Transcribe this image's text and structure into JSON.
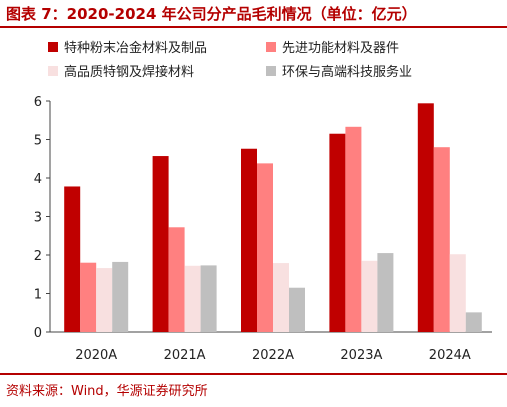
{
  "title": "图表 7：2020-2024 年公司分产品毛利情况（单位：亿元）",
  "source": "资料来源：Wind，华源证券研究所",
  "chart_data": {
    "type": "bar",
    "categories": [
      "2020A",
      "2021A",
      "2022A",
      "2023A",
      "2024A"
    ],
    "ylim": [
      0,
      6
    ],
    "yticks": [
      "0",
      "1",
      "2",
      "3",
      "4",
      "5",
      "6"
    ],
    "grid": false,
    "legend_position": "top",
    "series": [
      {
        "name": "特种粉末冶金材料及制品",
        "color": "#c00000",
        "values": [
          3.78,
          4.57,
          4.76,
          5.15,
          5.94
        ]
      },
      {
        "name": "先进功能材料及器件",
        "color": "#ff8080",
        "values": [
          1.8,
          2.72,
          4.38,
          5.33,
          4.8
        ]
      },
      {
        "name": "高品质特钢及焊接材料",
        "color": "#f8e0e0",
        "values": [
          1.66,
          1.72,
          1.79,
          1.85,
          2.02
        ]
      },
      {
        "name": "环保与高端科技服务业",
        "color": "#bfbfbf",
        "values": [
          1.82,
          1.73,
          1.15,
          2.05,
          0.51
        ]
      }
    ]
  }
}
